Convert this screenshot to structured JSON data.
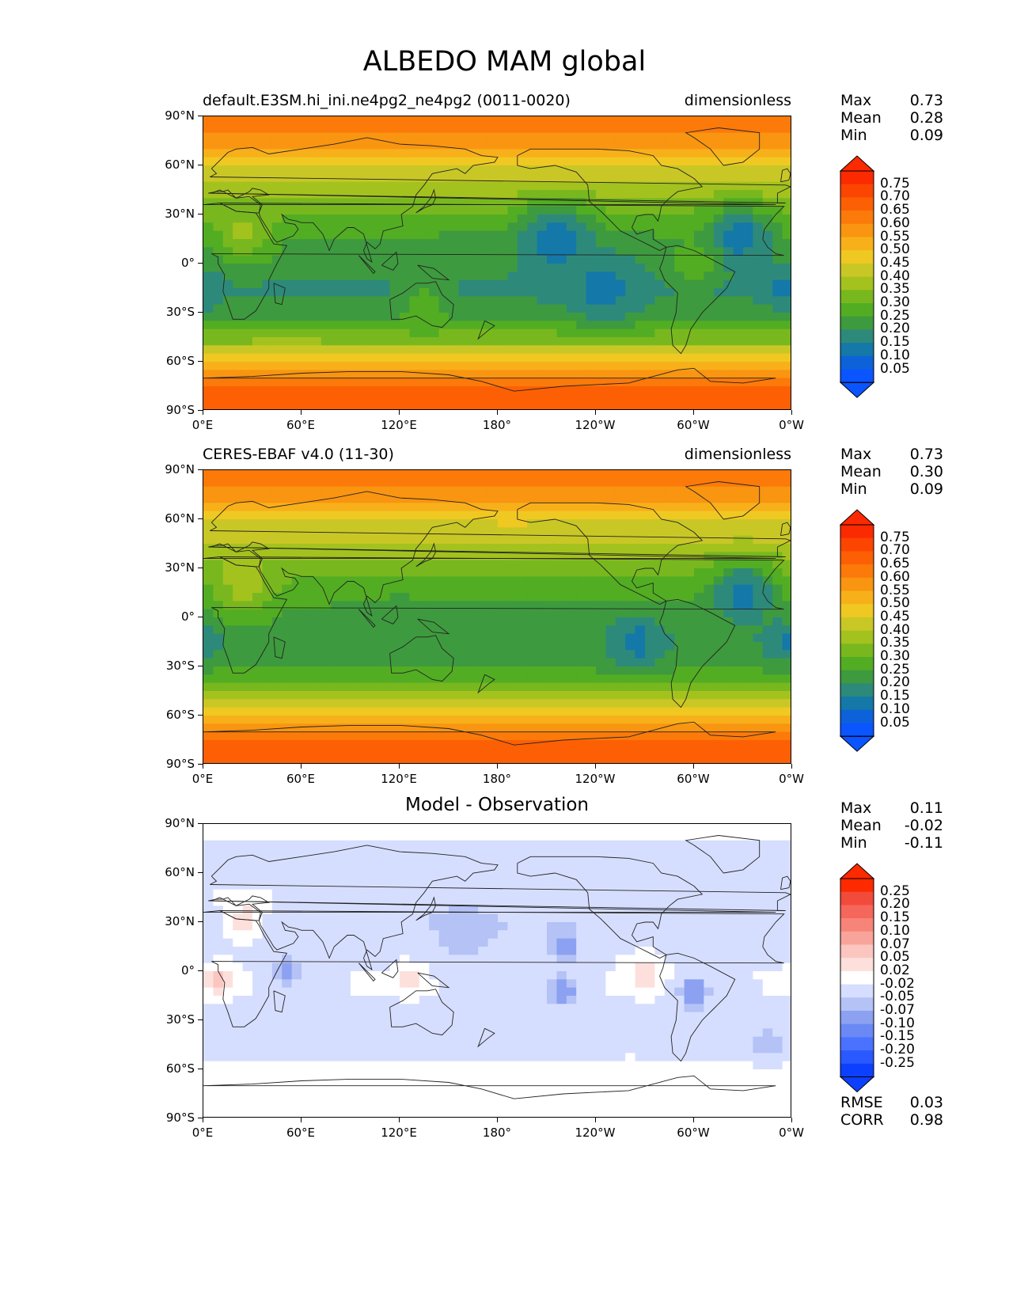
{
  "title": "ALBEDO MAM global",
  "colors": {
    "field": [
      "#0a55ff",
      "#0d62d9",
      "#1478a8",
      "#2d8a7a",
      "#3e9a3e",
      "#52ad23",
      "#78b81e",
      "#a4c21e",
      "#c9c726",
      "#f0c822",
      "#f8b01a",
      "#f99510",
      "#fc7a0a",
      "#fd6004",
      "#fc4500",
      "#fb2a00"
    ],
    "diff": [
      "#0d3fff",
      "#2a59ff",
      "#4b72ff",
      "#6a89f5",
      "#8ca1f1",
      "#b4c2f6",
      "#d6deff",
      "#ffffff",
      "#ffffff",
      "#fde0dc",
      "#fbc6c0",
      "#f9a49a",
      "#f78479",
      "#f5675a",
      "#f24a3b",
      "#fd2a00"
    ],
    "coast": "#222222"
  },
  "panels": [
    {
      "name": "test",
      "left_title": "default.E3SM.hi_ini.ne4pg2_ne4pg2 (0011-0020)",
      "right_title": "dimensionless",
      "center_title": "",
      "stats": [
        {
          "label": "Max",
          "value": "0.73"
        },
        {
          "label": "Mean",
          "value": "0.28"
        },
        {
          "label": "Min",
          "value": "0.09"
        }
      ],
      "colorbar": {
        "ticks": [
          "0.75",
          "0.70",
          "0.65",
          "0.60",
          "0.55",
          "0.50",
          "0.45",
          "0.40",
          "0.35",
          "0.30",
          "0.25",
          "0.20",
          "0.15",
          "0.10",
          "0.05"
        ],
        "palette": "field"
      },
      "extra_stats": []
    },
    {
      "name": "reference",
      "left_title": "CERES-EBAF v4.0 (11-30)",
      "right_title": "dimensionless",
      "center_title": "",
      "stats": [
        {
          "label": "Max",
          "value": "0.73"
        },
        {
          "label": "Mean",
          "value": "0.30"
        },
        {
          "label": "Min",
          "value": "0.09"
        }
      ],
      "colorbar": {
        "ticks": [
          "0.75",
          "0.70",
          "0.65",
          "0.60",
          "0.55",
          "0.50",
          "0.45",
          "0.40",
          "0.35",
          "0.30",
          "0.25",
          "0.20",
          "0.15",
          "0.10",
          "0.05"
        ],
        "palette": "field"
      },
      "extra_stats": []
    },
    {
      "name": "difference",
      "left_title": "",
      "right_title": "",
      "center_title": "Model - Observation",
      "stats": [
        {
          "label": "Max",
          "value": "0.11"
        },
        {
          "label": "Mean",
          "value": "-0.02"
        },
        {
          "label": "Min",
          "value": "-0.11"
        }
      ],
      "colorbar": {
        "ticks": [
          "0.25",
          "0.20",
          "0.15",
          "0.10",
          "0.07",
          "0.05",
          "0.02",
          "-0.02",
          "-0.05",
          "-0.07",
          "-0.10",
          "-0.15",
          "-0.20",
          "-0.25"
        ],
        "palette": "diff"
      },
      "extra_stats": [
        {
          "label": "RMSE",
          "value": "0.03"
        },
        {
          "label": "CORR",
          "value": "0.98"
        }
      ]
    }
  ],
  "axes": {
    "x_ticks": [
      "0°E",
      "60°E",
      "120°E",
      "180°",
      "120°W",
      "60°W",
      "0°W"
    ],
    "y_ticks": [
      "90°N",
      "60°N",
      "30°N",
      "0°",
      "30°S",
      "60°S",
      "90°S"
    ]
  },
  "chart_data": [
    {
      "type": "heatmap",
      "title": "default.E3SM.hi_ini.ne4pg2_ne4pg2 (0011-0020)",
      "units": "dimensionless",
      "xlim": [
        0,
        360
      ],
      "ylim": [
        -90,
        90
      ],
      "zonal_mean": {
        "lat": [
          -90,
          -75,
          -60,
          -45,
          -30,
          -15,
          0,
          15,
          30,
          45,
          60,
          75,
          90
        ],
        "values": [
          0.7,
          0.66,
          0.5,
          0.32,
          0.22,
          0.19,
          0.22,
          0.24,
          0.3,
          0.38,
          0.46,
          0.58,
          0.65
        ]
      },
      "features": [
        {
          "lon": 215,
          "lat": 15,
          "value": 0.12,
          "radius": 22
        },
        {
          "lon": 328,
          "lat": 17,
          "value": 0.12,
          "radius": 18
        },
        {
          "lon": 245,
          "lat": -15,
          "value": 0.13,
          "radius": 20
        },
        {
          "lon": 355,
          "lat": -15,
          "value": 0.13,
          "radius": 12
        },
        {
          "lon": 25,
          "lat": 20,
          "value": 0.36,
          "radius": 18
        },
        {
          "lon": 135,
          "lat": -25,
          "value": 0.28,
          "radius": 14
        },
        {
          "lon": 300,
          "lat": 0,
          "value": 0.28,
          "radius": 14
        }
      ]
    },
    {
      "type": "heatmap",
      "title": "CERES-EBAF v4.0 (11-30)",
      "units": "dimensionless",
      "xlim": [
        0,
        360
      ],
      "ylim": [
        -90,
        90
      ],
      "zonal_mean": {
        "lat": [
          -90,
          -75,
          -60,
          -45,
          -30,
          -15,
          0,
          15,
          30,
          45,
          60,
          75,
          90
        ],
        "values": [
          0.7,
          0.66,
          0.52,
          0.33,
          0.24,
          0.21,
          0.24,
          0.26,
          0.32,
          0.4,
          0.46,
          0.58,
          0.65
        ]
      },
      "features": [
        {
          "lon": 330,
          "lat": 15,
          "value": 0.12,
          "radius": 18
        },
        {
          "lon": 265,
          "lat": -15,
          "value": 0.13,
          "radius": 16
        },
        {
          "lon": 355,
          "lat": -15,
          "value": 0.14,
          "radius": 12
        },
        {
          "lon": 25,
          "lat": 20,
          "value": 0.38,
          "radius": 18
        },
        {
          "lon": 120,
          "lat": -5,
          "value": 0.22,
          "radius": 14
        }
      ]
    },
    {
      "type": "heatmap",
      "title": "Model - Observation",
      "xlim": [
        0,
        360
      ],
      "ylim": [
        -90,
        90
      ],
      "zonal_mean": {
        "lat": [
          -90,
          -75,
          -60,
          -45,
          -30,
          -15,
          0,
          15,
          30,
          45,
          60,
          75,
          90
        ],
        "values": [
          0.0,
          0.0,
          -0.01,
          -0.03,
          -0.04,
          -0.02,
          -0.02,
          -0.03,
          -0.05,
          -0.02,
          -0.03,
          -0.03,
          0.0
        ]
      },
      "features": [
        {
          "lon": 10,
          "lat": -5,
          "value": 0.08,
          "radius": 8
        },
        {
          "lon": 25,
          "lat": 32,
          "value": 0.04,
          "radius": 12
        },
        {
          "lon": 270,
          "lat": 0,
          "value": 0.06,
          "radius": 10
        },
        {
          "lon": 125,
          "lat": -5,
          "value": 0.04,
          "radius": 8
        },
        {
          "lon": 50,
          "lat": 0,
          "value": -0.08,
          "radius": 10
        },
        {
          "lon": 220,
          "lat": 15,
          "value": -0.09,
          "radius": 10
        },
        {
          "lon": 220,
          "lat": -12,
          "value": -0.09,
          "radius": 10
        },
        {
          "lon": 300,
          "lat": -12,
          "value": -0.1,
          "radius": 10
        },
        {
          "lon": 160,
          "lat": 25,
          "value": -0.07,
          "radius": 18
        },
        {
          "lon": 345,
          "lat": -45,
          "value": -0.07,
          "radius": 10
        }
      ]
    }
  ]
}
